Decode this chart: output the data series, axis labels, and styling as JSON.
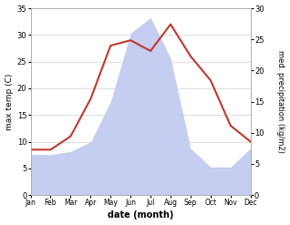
{
  "months": [
    "Jan",
    "Feb",
    "Mar",
    "Apr",
    "May",
    "Jun",
    "Jul",
    "Aug",
    "Sep",
    "Oct",
    "Nov",
    "Dec"
  ],
  "x": [
    0,
    1,
    2,
    3,
    4,
    5,
    6,
    7,
    8,
    9,
    10,
    11
  ],
  "temperature": [
    8.5,
    8.5,
    11.0,
    18.0,
    28.0,
    29.0,
    27.0,
    32.0,
    26.0,
    21.5,
    13.0,
    10.0
  ],
  "precipitation_right": [
    6.5,
    6.5,
    7.0,
    8.5,
    15.0,
    26.0,
    28.5,
    22.0,
    7.5,
    4.5,
    4.5,
    7.5
  ],
  "temp_color": "#c0392b",
  "precip_fill_color": "#c5cef0",
  "left_ylabel": "max temp (C)",
  "right_ylabel": "med. precipitation (kg/m2)",
  "xlabel": "date (month)",
  "left_ylim": [
    0,
    35
  ],
  "right_ylim": [
    0,
    30
  ],
  "left_yticks": [
    0,
    5,
    10,
    15,
    20,
    25,
    30,
    35
  ],
  "right_yticks": [
    0,
    5,
    10,
    15,
    20,
    25,
    30
  ],
  "bg_color": "#ffffff",
  "grid_color": "#d0d0d0"
}
